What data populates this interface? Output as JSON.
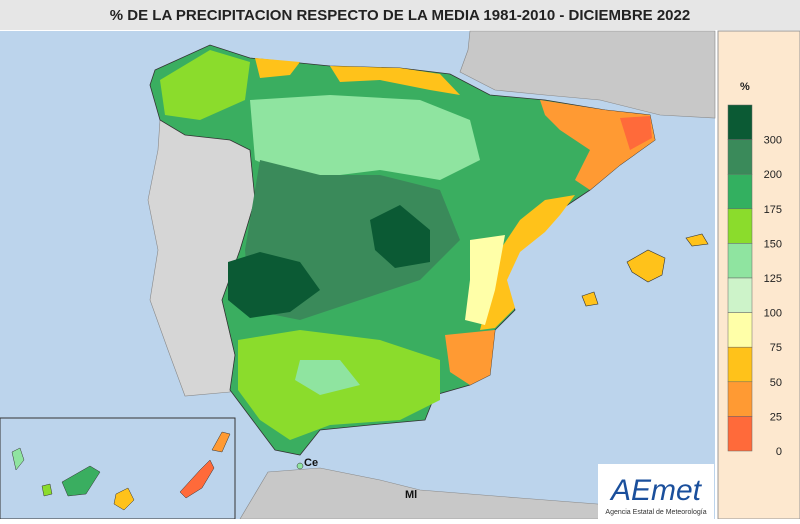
{
  "title": "% DE LA PRECIPITACION RESPECTO DE LA MEDIA 1981-2010 - DICIEMBRE 2022",
  "legend": {
    "unit": "%",
    "colors": [
      "#0b5a34",
      "#3a8a5a",
      "#33b060",
      "#8bdc2c",
      "#8fe4a0",
      "#cdf3c9",
      "#ffffa8",
      "#ffc21a",
      "#ff9a33",
      "#ff6a3a"
    ],
    "labels": [
      "300",
      "200",
      "175",
      "150",
      "125",
      "100",
      "75",
      "50",
      "25",
      "0"
    ]
  },
  "map_labels": [
    "Ce",
    "Ml"
  ],
  "logo": {
    "text": "AEmet",
    "subtitle": "Agencia Estatal de Meteorología"
  }
}
